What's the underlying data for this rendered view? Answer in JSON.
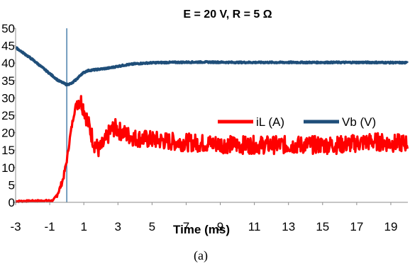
{
  "chart_data": {
    "type": "line",
    "title": "E = 20 V, R = 5 Ω",
    "xlabel": "Time (ms)",
    "ylabel": "",
    "caption": "(a)",
    "xlim": [
      -3,
      20
    ],
    "ylim": [
      0,
      50
    ],
    "xticks": [
      -3,
      -1,
      1,
      3,
      5,
      7,
      9,
      11,
      13,
      15,
      17,
      19
    ],
    "yticks": [
      0,
      5,
      10,
      15,
      20,
      25,
      30,
      35,
      40,
      45,
      50
    ],
    "grid": false,
    "legend_position": "center-right",
    "marker_line_x": 0,
    "series": [
      {
        "name": "iL (A)",
        "color": "#ff0000",
        "noise_band": true,
        "x": [
          -3,
          -0.8,
          -0.6,
          -0.4,
          -0.2,
          0,
          0.2,
          0.4,
          0.6,
          0.8,
          1.0,
          1.3,
          1.6,
          1.9,
          2.2,
          2.5,
          2.8,
          3.1,
          3.5,
          4,
          5,
          6,
          8,
          10,
          12,
          14,
          16,
          17,
          18,
          19,
          20
        ],
        "y": [
          0.3,
          0.5,
          2,
          4,
          7,
          12,
          19,
          25,
          29,
          29.5,
          27,
          22,
          17,
          15,
          17,
          20,
          21.5,
          20.5,
          19.5,
          18.5,
          18,
          17.5,
          17,
          16.5,
          16.5,
          16.5,
          16.5,
          17,
          17.5,
          17,
          17
        ]
      },
      {
        "name": "Vb (V)",
        "color": "#1f4e79",
        "noise_band": false,
        "x": [
          -3,
          -2,
          -1,
          -0.5,
          0,
          0.3,
          0.6,
          0.9,
          1.2,
          1.5,
          2,
          2.5,
          3,
          3.5,
          4,
          5,
          6,
          8,
          10,
          12,
          14,
          16,
          18,
          20
        ],
        "y": [
          44.5,
          41,
          37,
          35,
          33.8,
          34.2,
          35.5,
          37,
          37.8,
          38,
          38.3,
          38.6,
          39.1,
          39.5,
          39.8,
          40.1,
          40.2,
          40.3,
          40.2,
          40.2,
          40.2,
          40.2,
          40.2,
          40.1
        ]
      }
    ]
  }
}
